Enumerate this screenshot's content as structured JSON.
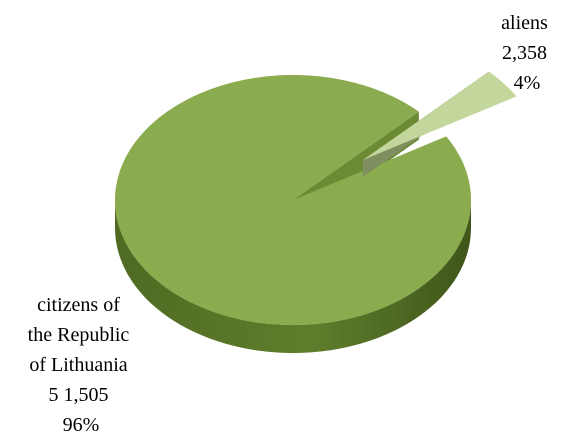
{
  "chart_data": {
    "type": "pie",
    "style": "3d-exploded",
    "title": "",
    "slices": [
      {
        "label_lines": [
          "aliens",
          "2,358",
          "4%"
        ],
        "value_text": "2,358",
        "percent": 4,
        "color": "#c3d69b",
        "exploded": true
      },
      {
        "label_lines": [
          "citizens of",
          "the Republic",
          "of Lithuania",
          "5 1,505",
          "96%"
        ],
        "value_text": "5 1,505",
        "percent": 96,
        "color": "#8aab4e",
        "exploded": false
      }
    ],
    "legend": "none"
  }
}
